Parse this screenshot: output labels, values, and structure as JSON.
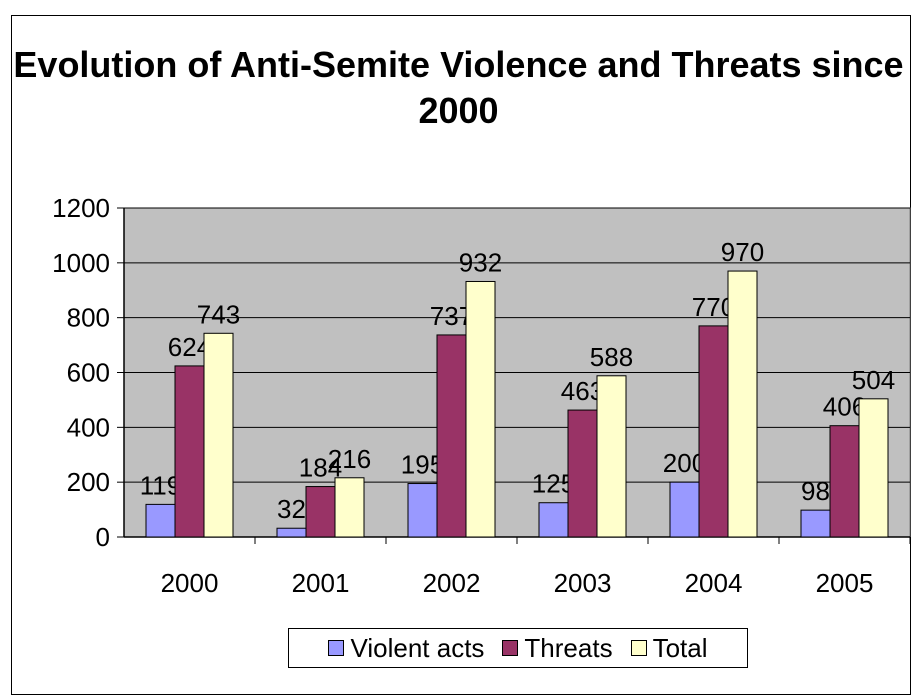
{
  "chart_data": {
    "type": "bar",
    "title": "Evolution of Anti-Semite Violence and Threats since 2000",
    "categories": [
      "2000",
      "2001",
      "2002",
      "2003",
      "2004",
      "2005"
    ],
    "series": [
      {
        "name": "Violent acts",
        "values": [
          119,
          32,
          195,
          125,
          200,
          98
        ],
        "color": "#9999FF"
      },
      {
        "name": "Threats",
        "values": [
          624,
          184,
          737,
          463,
          770,
          406
        ],
        "color": "#993366"
      },
      {
        "name": "Total",
        "values": [
          743,
          216,
          932,
          588,
          970,
          504
        ],
        "color": "#FFFFCC"
      }
    ],
    "ylim": [
      0,
      1200
    ],
    "yticks": [
      0,
      200,
      400,
      600,
      800,
      1000,
      1200
    ],
    "grid": true,
    "plot_background": "#C0C0C0",
    "legend": "bottom",
    "data_labels": true
  }
}
